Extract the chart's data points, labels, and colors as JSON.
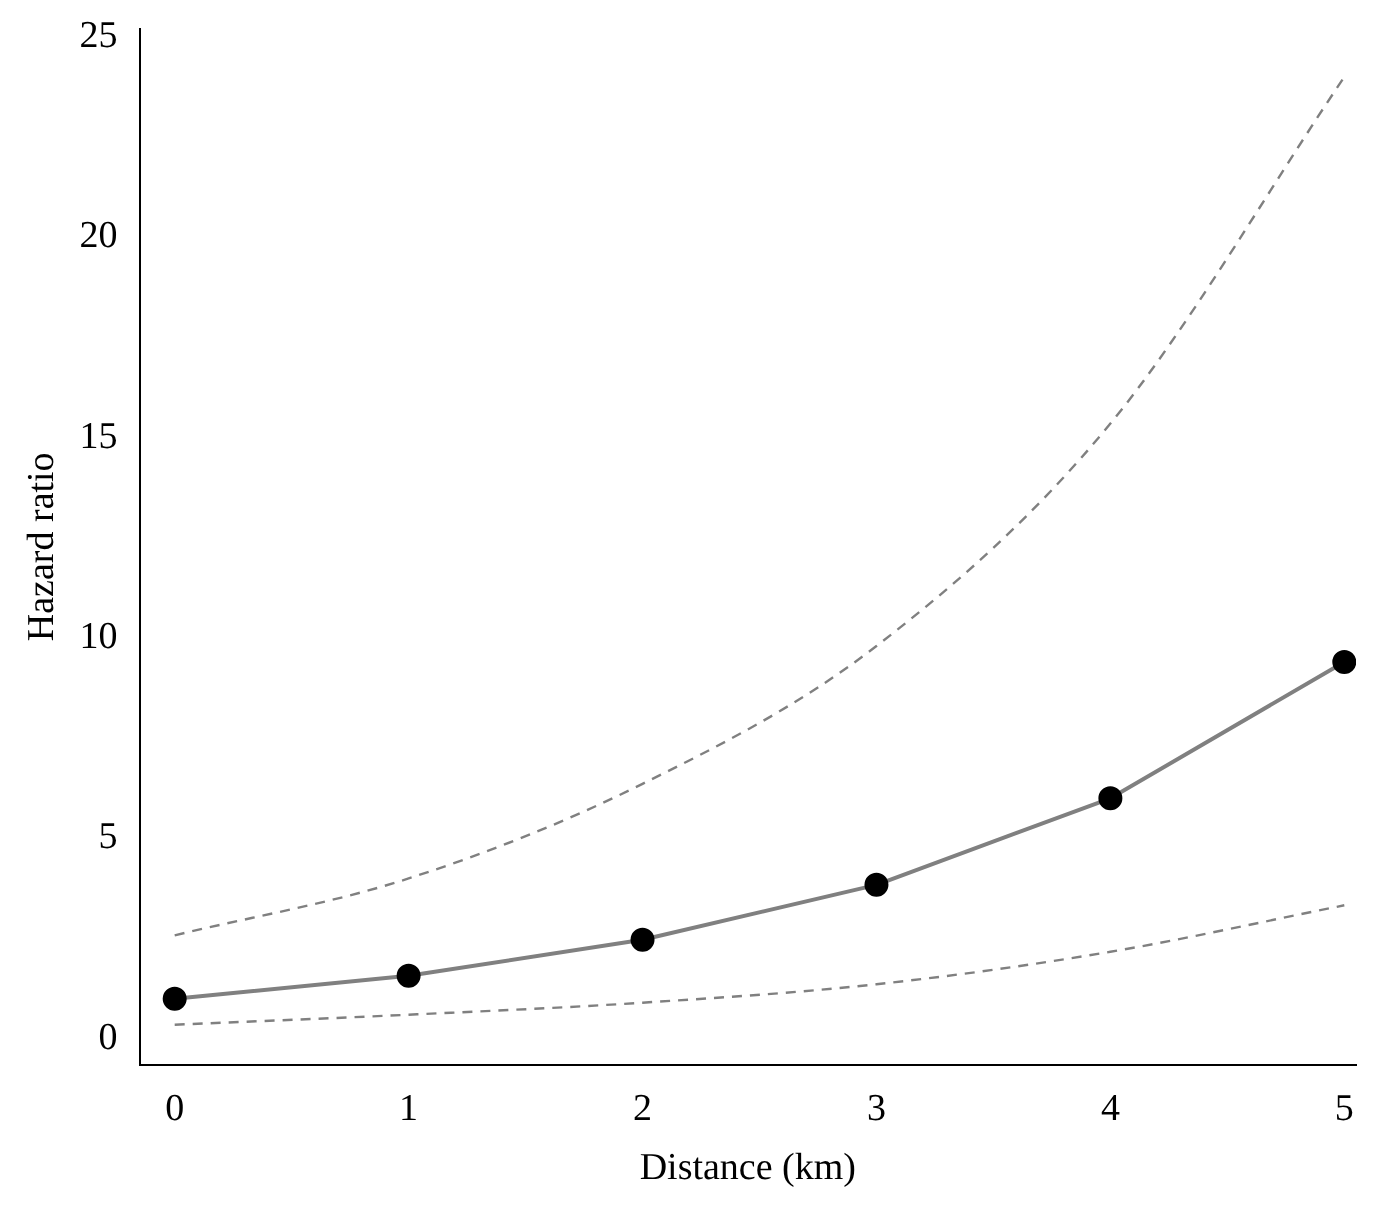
{
  "chart_data": {
    "type": "line",
    "xlabel": "Distance (km)",
    "ylabel": "Hazard ratio",
    "x": [
      0,
      1,
      2,
      3,
      4,
      5
    ],
    "series": [
      {
        "color": "#808080",
        "values": [
          1.0,
          1.57,
          2.47,
          3.84,
          6.0,
          9.4
        ],
        "marker": "circle",
        "line_style": "solid"
      },
      {
        "color": "#808080",
        "values": [
          2.58,
          4.0,
          6.36,
          9.8,
          15.35,
          24.0
        ],
        "marker": "none",
        "line_style": "dashed"
      },
      {
        "color": "#808080",
        "values": [
          0.35,
          0.6,
          0.9,
          1.36,
          2.17,
          3.33
        ],
        "marker": "none",
        "line_style": "dashed"
      }
    ],
    "xlim": [
      -0.15,
      5.05
    ],
    "xticks": [
      0,
      1,
      2,
      3,
      4,
      5
    ],
    "ylim": [
      -0.65,
      25.2
    ],
    "yticks": [
      0,
      5,
      10,
      15,
      20,
      25
    ],
    "grid": false,
    "legend": false
  }
}
